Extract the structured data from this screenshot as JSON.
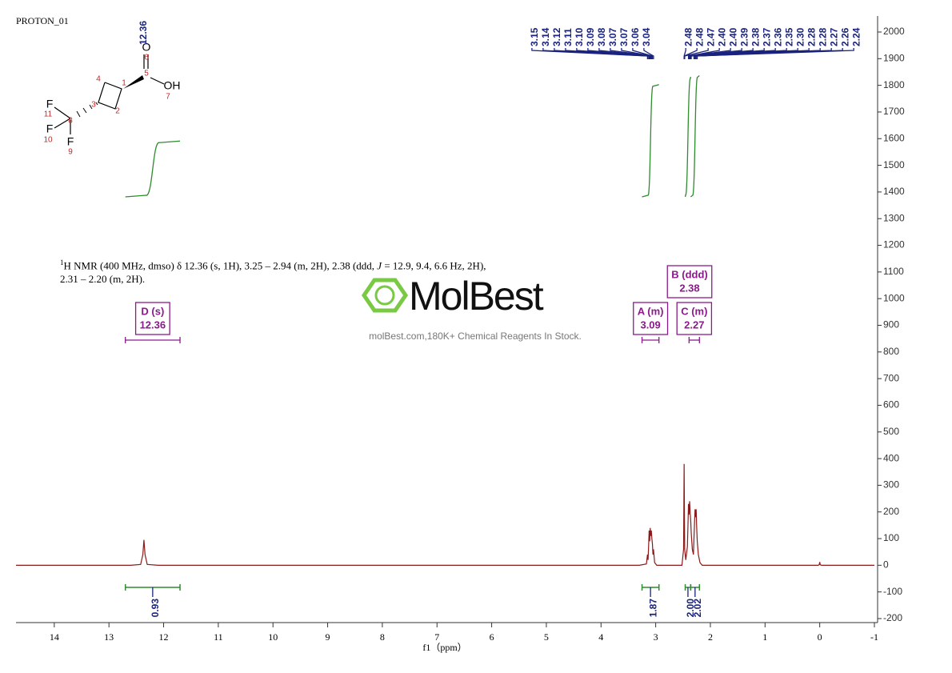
{
  "header": {
    "experiment": "PROTON_01"
  },
  "watermark": {
    "brand": "MolBest",
    "tagline": "molBest.com,180K+ Chemical Reagents In Stock."
  },
  "structure": {
    "shift": 12.36,
    "labels": [
      "O",
      "6",
      "5",
      "OH",
      "7",
      "1",
      "4",
      "3",
      "2",
      "8",
      "F",
      "11",
      "F",
      "10",
      "F",
      "9"
    ]
  },
  "annotation": {
    "superscript": "1",
    "text_1": "H NMR (400 MHz, dmso) δ 12.36 (s, 1H), 3.25 – 2.94 (m, 2H), 2.38 (ddd, ",
    "j": "J",
    "text_2": " = 12.9, 9.4, 6.6 Hz, 2H),",
    "line_2": "2.31 – 2.20 (m, 2H)."
  },
  "chart_data": {
    "type": "line",
    "x_label": "f1（ppm）",
    "xlim": [
      14.7,
      -1
    ],
    "xticks": [
      14,
      13,
      12,
      11,
      10,
      9,
      8,
      7,
      6,
      5,
      4,
      3,
      2,
      1,
      0,
      -1
    ],
    "ylim": [
      -200,
      2060
    ],
    "yticks": [
      -200,
      -100,
      0,
      100,
      200,
      300,
      400,
      500,
      600,
      700,
      800,
      900,
      1000,
      1100,
      1200,
      1300,
      1400,
      1500,
      1600,
      1700,
      1800,
      1900,
      2000
    ],
    "color": "#8b1a1a",
    "x": [
      14.7,
      12.6,
      12.42,
      12.38,
      12.36,
      12.34,
      12.3,
      12.1,
      3.3,
      3.17,
      3.15,
      3.14,
      3.13,
      3.12,
      3.11,
      3.1,
      3.09,
      3.08,
      3.07,
      3.06,
      3.05,
      3.04,
      3.02,
      2.98,
      2.52,
      2.49,
      2.48,
      2.47,
      2.45,
      2.42,
      2.41,
      2.4,
      2.39,
      2.38,
      2.37,
      2.36,
      2.35,
      2.33,
      2.31,
      2.3,
      2.29,
      2.28,
      2.27,
      2.26,
      2.25,
      2.24,
      2.22,
      2.19,
      2.15,
      0.03,
      0.01,
      0,
      -0.01,
      -0.03,
      -1
    ],
    "values": [
      0,
      0,
      3,
      40,
      95,
      40,
      3,
      0,
      0,
      5,
      40,
      20,
      70,
      130,
      90,
      140,
      110,
      130,
      100,
      80,
      40,
      60,
      10,
      0,
      0,
      60,
      380,
      60,
      20,
      70,
      150,
      230,
      190,
      240,
      200,
      170,
      120,
      60,
      40,
      100,
      160,
      210,
      180,
      210,
      140,
      90,
      40,
      10,
      0,
      0,
      2,
      12,
      2,
      0,
      0
    ],
    "peak_labels": [
      3.15,
      3.14,
      3.12,
      3.11,
      {
        "value": 3.1,
        "label": "3.10"
      },
      3.09,
      3.08,
      3.07,
      3.07,
      3.06,
      3.04,
      2.48,
      2.48,
      2.47,
      {
        "value": 2.4,
        "label": "2.40"
      },
      {
        "value": 2.4,
        "label": "2.40"
      },
      2.39,
      2.38,
      2.37,
      2.36,
      2.35,
      {
        "value": 2.3,
        "label": "2.30"
      },
      2.28,
      2.28,
      2.27,
      2.26,
      2.24
    ],
    "integrals": [
      {
        "range": [
          12.7,
          11.7
        ],
        "value": 0.93
      },
      {
        "range": [
          3.25,
          2.94
        ],
        "value": 1.87
      },
      {
        "range": [
          2.46,
          2.36
        ],
        "value": {
          "value": 2,
          "label": "2.00"
        }
      },
      {
        "range": [
          2.36,
          2.2
        ],
        "value": 2.02
      }
    ],
    "multiplets": [
      {
        "name": "D (s)",
        "shift": 12.36,
        "range": [
          12.7,
          11.7
        ]
      },
      {
        "name": "A (m)",
        "shift": 3.09,
        "range": [
          3.25,
          2.94
        ]
      },
      {
        "name": "C (m)",
        "shift": 2.27,
        "range": [
          2.39,
          2.2
        ]
      },
      {
        "name": "B (ddd)",
        "shift": 2.38
      }
    ]
  }
}
